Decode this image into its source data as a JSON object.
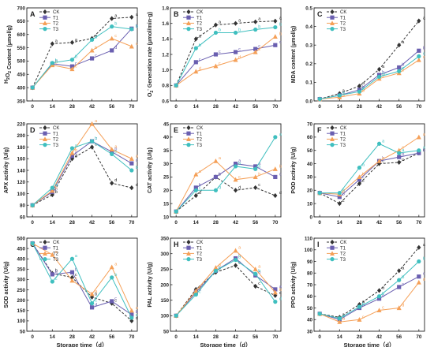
{
  "figure": {
    "series_styles": {
      "CK": {
        "color": "#333333",
        "dash": "3,2",
        "marker": "diamond"
      },
      "T1": {
        "color": "#6a5fb0",
        "dash": "",
        "marker": "square"
      },
      "T2": {
        "color": "#f5a058",
        "dash": "",
        "marker": "triangle"
      },
      "T3": {
        "color": "#3fbfbf",
        "dash": "",
        "marker": "circle"
      }
    }
  },
  "chart_data": [
    {
      "type": "line",
      "panel": "A",
      "ylabel": "H2O2 Content (μmol/g)",
      "xlabel": "",
      "x": [
        0,
        14,
        28,
        42,
        56,
        70
      ],
      "xticks": [
        0,
        14,
        28,
        42,
        56,
        70
      ],
      "ylim": [
        350,
        700
      ],
      "yticks": [
        350,
        400,
        450,
        500,
        550,
        600,
        650,
        700
      ],
      "legend": [
        "CK",
        "T1",
        "T2",
        "T3"
      ],
      "series": [
        {
          "name": "CK",
          "values": [
            400,
            565,
            570,
            585,
            660,
            665
          ],
          "labels": [
            "",
            "a",
            "a",
            "a",
            "a",
            "a"
          ]
        },
        {
          "name": "T1",
          "values": [
            400,
            490,
            480,
            510,
            540,
            622
          ],
          "labels": [
            "",
            "b",
            "c",
            "c",
            "d",
            "b"
          ]
        },
        {
          "name": "T2",
          "values": [
            400,
            485,
            470,
            540,
            585,
            555
          ],
          "labels": [
            "",
            "b",
            "c",
            "b",
            "c",
            "c"
          ]
        },
        {
          "name": "T3",
          "values": [
            400,
            493,
            505,
            580,
            630,
            620
          ],
          "labels": [
            "",
            "b",
            "b",
            "a",
            "b",
            "b"
          ]
        }
      ]
    },
    {
      "type": "line",
      "panel": "B",
      "ylabel": "O2- Generation rate (μmol/min·g)",
      "xlabel": "",
      "x": [
        0,
        14,
        28,
        42,
        56,
        70
      ],
      "xticks": [
        0,
        14,
        28,
        42,
        56,
        70
      ],
      "ylim": [
        0.6,
        1.8
      ],
      "yticks": [
        0.6,
        0.8,
        1.0,
        1.2,
        1.4,
        1.6,
        1.8
      ],
      "legend": [
        "CK",
        "T1",
        "T2",
        "T3"
      ],
      "series": [
        {
          "name": "CK",
          "values": [
            0.8,
            1.4,
            1.58,
            1.6,
            1.62,
            1.63
          ],
          "labels": [
            "",
            "a",
            "a",
            "a",
            "a",
            "a"
          ]
        },
        {
          "name": "T1",
          "values": [
            0.8,
            1.1,
            1.2,
            1.23,
            1.27,
            1.32
          ],
          "labels": [
            "",
            "c",
            "c",
            "c",
            "c",
            "c"
          ]
        },
        {
          "name": "T2",
          "values": [
            0.8,
            0.98,
            1.05,
            1.13,
            1.23,
            1.43
          ],
          "labels": [
            "",
            "d",
            "c",
            "d",
            "c",
            "b"
          ]
        },
        {
          "name": "T3",
          "values": [
            0.8,
            1.28,
            1.48,
            1.48,
            1.52,
            1.55
          ],
          "labels": [
            "",
            "b",
            "b",
            "b",
            "b",
            "b"
          ]
        }
      ]
    },
    {
      "type": "line",
      "panel": "C",
      "ylabel": "MDA content (μmol/g)",
      "xlabel": "",
      "x": [
        0,
        14,
        28,
        42,
        56,
        70
      ],
      "xticks": [
        0,
        14,
        28,
        42,
        56,
        70
      ],
      "ylim": [
        0.0,
        0.5
      ],
      "yticks": [
        0.0,
        0.1,
        0.2,
        0.3,
        0.4,
        0.5
      ],
      "legend": [
        "CK",
        "T1",
        "T2",
        "T3"
      ],
      "series": [
        {
          "name": "CK",
          "values": [
            0.01,
            0.04,
            0.08,
            0.17,
            0.3,
            0.43
          ],
          "labels": [
            "",
            "a",
            "a",
            "a",
            "a",
            "a"
          ]
        },
        {
          "name": "T1",
          "values": [
            0.01,
            0.03,
            0.06,
            0.14,
            0.18,
            0.27
          ],
          "labels": [
            "",
            "a",
            "b",
            "b",
            "b",
            "b"
          ]
        },
        {
          "name": "T2",
          "values": [
            0.01,
            0.02,
            0.04,
            0.12,
            0.15,
            0.22
          ],
          "labels": [
            "",
            "a",
            "b",
            "c",
            "c",
            "c"
          ]
        },
        {
          "name": "T3",
          "values": [
            0.01,
            0.03,
            0.05,
            0.13,
            0.16,
            0.24
          ],
          "labels": [
            "",
            "a",
            "b",
            "bc",
            "c",
            "c"
          ]
        }
      ]
    },
    {
      "type": "line",
      "panel": "D",
      "ylabel": "APX activity (U/g)",
      "xlabel": "",
      "x": [
        0,
        14,
        28,
        42,
        56,
        70
      ],
      "xticks": [
        0,
        14,
        28,
        42,
        56,
        70
      ],
      "ylim": [
        60,
        220
      ],
      "yticks": [
        60,
        80,
        100,
        120,
        140,
        160,
        180,
        200,
        220
      ],
      "legend": [
        "CK",
        "T1",
        "T2",
        "T3"
      ],
      "series": [
        {
          "name": "CK",
          "values": [
            80,
            98,
            160,
            180,
            118,
            110
          ],
          "labels": [
            "",
            "b",
            "d",
            "c",
            "d",
            "d"
          ]
        },
        {
          "name": "T1",
          "values": [
            80,
            103,
            165,
            190,
            172,
            152
          ],
          "labels": [
            "",
            "b",
            "c",
            "b",
            "b",
            "c"
          ]
        },
        {
          "name": "T2",
          "values": [
            80,
            105,
            170,
            220,
            176,
            160
          ],
          "labels": [
            "",
            "b",
            "b",
            "a",
            "a",
            "a"
          ]
        },
        {
          "name": "T3",
          "values": [
            80,
            110,
            178,
            190,
            168,
            140
          ],
          "labels": [
            "",
            "a",
            "a",
            "b",
            "c",
            "b"
          ]
        }
      ]
    },
    {
      "type": "line",
      "panel": "E",
      "ylabel": "CAT activity (U/g)",
      "xlabel": "",
      "x": [
        0,
        14,
        28,
        42,
        56,
        70
      ],
      "xticks": [
        0,
        14,
        28,
        42,
        56,
        70
      ],
      "ylim": [
        10,
        45
      ],
      "yticks": [
        10,
        15,
        20,
        25,
        30,
        35,
        40,
        45
      ],
      "legend": [
        "CK",
        "T1",
        "T2",
        "T3"
      ],
      "series": [
        {
          "name": "CK",
          "values": [
            12,
            18,
            25,
            20,
            21,
            18
          ],
          "labels": [
            "",
            "d",
            "c",
            "d",
            "c",
            "d"
          ]
        },
        {
          "name": "T1",
          "values": [
            12,
            21,
            25,
            30,
            29,
            25
          ],
          "labels": [
            "",
            "b",
            "b",
            "a",
            "a",
            "c"
          ]
        },
        {
          "name": "T2",
          "values": [
            12,
            26,
            31,
            24,
            25,
            28
          ],
          "labels": [
            "",
            "a",
            "a",
            "c",
            "b",
            "b"
          ]
        },
        {
          "name": "T3",
          "values": [
            12,
            20,
            20,
            29,
            28,
            40
          ],
          "labels": [
            "",
            "c",
            "d",
            "b",
            "a",
            "a"
          ]
        }
      ]
    },
    {
      "type": "line",
      "panel": "F",
      "ylabel": "POD activity (U/g)",
      "xlabel": "",
      "x": [
        0,
        14,
        28,
        42,
        56,
        70
      ],
      "xticks": [
        0,
        14,
        28,
        42,
        56,
        70
      ],
      "ylim": [
        0,
        70
      ],
      "yticks": [
        0,
        10,
        20,
        30,
        40,
        50,
        60,
        70
      ],
      "legend": [
        "CK",
        "T1",
        "T2",
        "T3"
      ],
      "series": [
        {
          "name": "CK",
          "values": [
            18,
            10,
            25,
            40,
            41,
            48
          ],
          "labels": [
            "",
            "c",
            "c",
            "c",
            "c",
            "c"
          ]
        },
        {
          "name": "T1",
          "values": [
            18,
            15,
            28,
            42,
            45,
            48
          ],
          "labels": [
            "",
            "b",
            "c",
            "b",
            "b",
            "b"
          ]
        },
        {
          "name": "T2",
          "values": [
            18,
            17,
            30,
            42,
            50,
            60
          ],
          "labels": [
            "",
            "b",
            "b",
            "c",
            "c",
            "a"
          ]
        },
        {
          "name": "T3",
          "values": [
            18,
            18,
            37,
            55,
            48,
            50
          ],
          "labels": [
            "",
            "a",
            "a",
            "a",
            "a",
            "a"
          ]
        }
      ]
    },
    {
      "type": "line",
      "panel": "G",
      "ylabel": "SOD activity (U/g)",
      "xlabel": "Storage time（d）",
      "x": [
        0,
        14,
        28,
        42,
        56,
        70
      ],
      "xticks": [
        0,
        14,
        28,
        42,
        56,
        70
      ],
      "ylim": [
        50,
        500
      ],
      "yticks": [
        50,
        100,
        150,
        200,
        250,
        300,
        350,
        400,
        450,
        500
      ],
      "legend": [
        "CK",
        "T1",
        "T2",
        "T3"
      ],
      "series": [
        {
          "name": "CK",
          "values": [
            475,
            330,
            310,
            215,
            185,
            100
          ],
          "labels": [
            "",
            "b",
            "c",
            "b",
            "c",
            "d"
          ]
        },
        {
          "name": "T1",
          "values": [
            475,
            325,
            335,
            165,
            195,
            130
          ],
          "labels": [
            "",
            "b",
            "b",
            "d",
            "c",
            "b"
          ]
        },
        {
          "name": "T2",
          "values": [
            475,
            420,
            295,
            230,
            360,
            150
          ],
          "labels": [
            "",
            "a",
            "c",
            "a",
            "a",
            "a"
          ]
        },
        {
          "name": "T3",
          "values": [
            475,
            290,
            400,
            185,
            310,
            115
          ],
          "labels": [
            "",
            "c",
            "a",
            "c",
            "b",
            "c"
          ]
        }
      ]
    },
    {
      "type": "line",
      "panel": "H",
      "ylabel": "PAL activity (U/g)",
      "xlabel": "Storage time（d）",
      "x": [
        0,
        14,
        28,
        42,
        56,
        70
      ],
      "xticks": [
        0,
        14,
        28,
        42,
        56,
        70
      ],
      "ylim": [
        50,
        350
      ],
      "yticks": [
        50,
        100,
        150,
        200,
        250,
        300,
        350
      ],
      "legend": [
        "CK",
        "T1",
        "T2",
        "T3"
      ],
      "series": [
        {
          "name": "CK",
          "values": [
            100,
            185,
            240,
            262,
            195,
            165
          ],
          "labels": [
            "",
            "a",
            "c",
            "c",
            "c",
            "c"
          ]
        },
        {
          "name": "T1",
          "values": [
            100,
            175,
            245,
            285,
            230,
            185
          ],
          "labels": [
            "",
            "b",
            "b",
            "b",
            "b",
            "a"
          ]
        },
        {
          "name": "T2",
          "values": [
            100,
            180,
            255,
            310,
            250,
            175
          ],
          "labels": [
            "",
            "b",
            "a",
            "a",
            "a",
            "b"
          ]
        },
        {
          "name": "T3",
          "values": [
            100,
            168,
            245,
            280,
            235,
            145
          ],
          "labels": [
            "",
            "c",
            "b",
            "b",
            "b",
            "d"
          ]
        }
      ]
    },
    {
      "type": "line",
      "panel": "I",
      "ylabel": "PPO activity (U/g)",
      "xlabel": "Storage time（d）",
      "x": [
        0,
        14,
        28,
        42,
        56,
        70
      ],
      "xticks": [
        0,
        14,
        28,
        42,
        56,
        70
      ],
      "ylim": [
        30,
        110
      ],
      "yticks": [
        30,
        40,
        50,
        60,
        70,
        80,
        90,
        100,
        110
      ],
      "legend": [
        "CK",
        "T1",
        "T2",
        "T3"
      ],
      "series": [
        {
          "name": "CK",
          "values": [
            45,
            42,
            53,
            65,
            82,
            102
          ],
          "labels": [
            "",
            "a",
            "a",
            "a",
            "a",
            "a"
          ]
        },
        {
          "name": "T1",
          "values": [
            45,
            40,
            50,
            58,
            68,
            77
          ],
          "labels": [
            "",
            "a",
            "b",
            "b",
            "c",
            "c"
          ]
        },
        {
          "name": "T2",
          "values": [
            45,
            38,
            40,
            48,
            50,
            72
          ],
          "labels": [
            "",
            "b",
            "c",
            "c",
            "d",
            "d"
          ]
        },
        {
          "name": "T3",
          "values": [
            45,
            41,
            51,
            60,
            74,
            90
          ],
          "labels": [
            "",
            "a",
            "b",
            "b",
            "b",
            "b"
          ]
        }
      ]
    }
  ]
}
